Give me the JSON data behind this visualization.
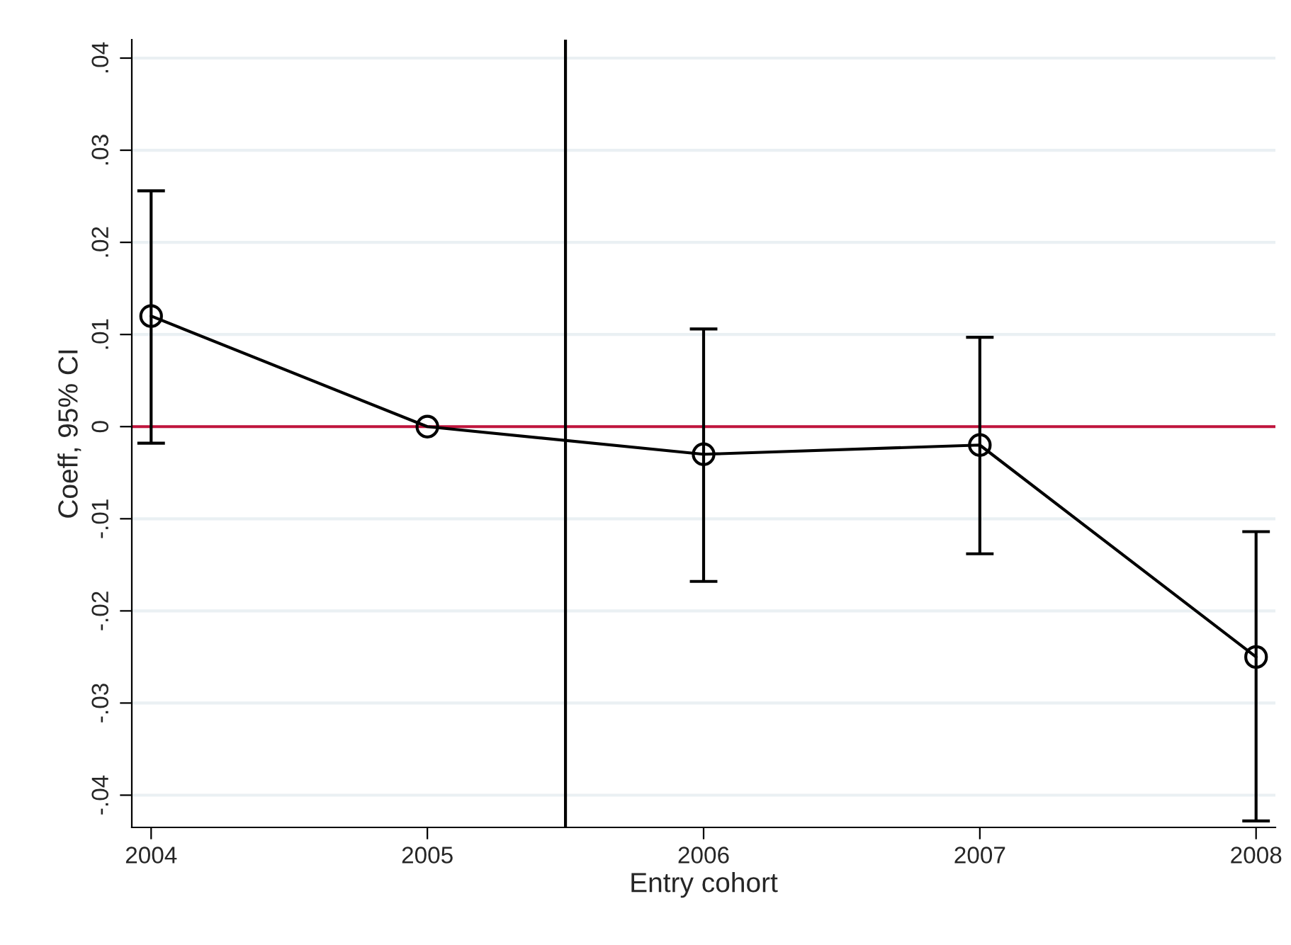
{
  "chart_data": {
    "type": "line",
    "xlabel": "Entry cohort",
    "ylabel": "Coeff, 95% CI",
    "x": [
      2004,
      2005,
      2006,
      2007,
      2008
    ],
    "series": [
      {
        "color": "#000000",
        "values": [
          0.012,
          0.0,
          -0.003,
          -0.002,
          -0.025
        ],
        "errors": [
          [
            -0.0018,
            0.0256
          ],
          null,
          [
            -0.0168,
            0.0106
          ],
          [
            -0.0138,
            0.0097
          ],
          [
            -0.0428,
            -0.0114
          ]
        ]
      }
    ],
    "marker": "circle",
    "line_style": "solid",
    "xlim": [
      2003.93,
      2008.07
    ],
    "xticks": [
      2004,
      2005,
      2006,
      2007,
      2008
    ],
    "ylim": [
      -0.0435,
      0.042
    ],
    "yticks": [
      {
        "value": -0.04,
        "label": "-.04"
      },
      {
        "value": -0.03,
        "label": "-.03"
      },
      {
        "value": -0.02,
        "label": "-.02"
      },
      {
        "value": -0.01,
        "label": "-.01"
      },
      {
        "value": 0,
        "label": "0"
      },
      {
        "value": 0.01,
        "label": ".01"
      },
      {
        "value": 0.02,
        "label": ".02"
      },
      {
        "value": 0.03,
        "label": ".03"
      },
      {
        "value": 0.04,
        "label": ".04"
      }
    ],
    "grid": "y",
    "ref_lines": [
      {
        "axis": "y",
        "value": 0,
        "color": "#c0143c"
      },
      {
        "axis": "x",
        "value": 2005.5,
        "color": "#000000"
      }
    ]
  }
}
